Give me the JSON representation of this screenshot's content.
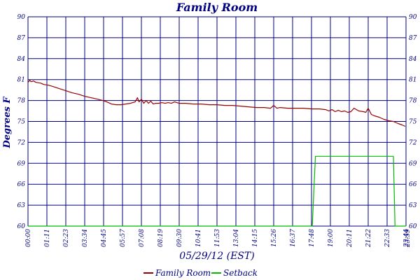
{
  "chart_data": {
    "type": "line",
    "title": "Family Room",
    "xlabel": "05/29/12 (EST)",
    "ylabel": "Degrees F",
    "grid": true,
    "legend_position": "bottom",
    "x_tick_labels": [
      "00:00",
      "01:11",
      "02:23",
      "03:34",
      "04:45",
      "05:57",
      "07:08",
      "08:19",
      "09:30",
      "10:41",
      "11:53",
      "13:04",
      "14:15",
      "15:26",
      "16:37",
      "17:48",
      "19:00",
      "20:11",
      "21:22",
      "22:33",
      "23:44",
      "23:59"
    ],
    "y_ticks": [
      60,
      63,
      66,
      69,
      72,
      75,
      78,
      81,
      84,
      87,
      90
    ],
    "ylim": [
      60,
      90
    ],
    "xlim_hours": [
      0,
      24
    ],
    "colors": {
      "family_room": "#990000",
      "setback": "#00bb00",
      "grid": "#000080",
      "text": "#000080"
    },
    "series": [
      {
        "name": "Family Room",
        "color": "#990000",
        "x_hours": [
          0,
          0.1,
          0.2,
          0.35,
          0.5,
          0.8,
          1.0,
          1.3,
          1.6,
          2.0,
          2.4,
          2.8,
          3.2,
          3.6,
          4.0,
          4.4,
          4.75,
          5.0,
          5.3,
          5.6,
          5.9,
          6.2,
          6.5,
          6.8,
          6.95,
          7.05,
          7.2,
          7.35,
          7.5,
          7.65,
          7.8,
          7.95,
          8.1,
          8.3,
          8.5,
          8.7,
          8.9,
          9.1,
          9.3,
          9.6,
          10.0,
          10.5,
          11.0,
          11.5,
          12.0,
          12.5,
          13.0,
          13.5,
          14.0,
          14.5,
          15.0,
          15.4,
          15.6,
          15.8,
          16.0,
          16.5,
          17.0,
          17.5,
          18.0,
          18.5,
          18.9,
          19.1,
          19.3,
          19.5,
          19.7,
          19.9,
          20.1,
          20.3,
          20.5,
          20.7,
          21.0,
          21.3,
          21.45,
          21.6,
          21.8,
          22.0,
          22.3,
          22.6,
          22.9,
          23.2,
          23.5,
          23.75,
          23.95
        ],
        "values": [
          80.6,
          80.9,
          80.7,
          80.8,
          80.6,
          80.5,
          80.3,
          80.2,
          80.0,
          79.7,
          79.4,
          79.1,
          78.9,
          78.6,
          78.4,
          78.2,
          78.0,
          77.8,
          77.5,
          77.4,
          77.4,
          77.5,
          77.6,
          77.8,
          78.4,
          77.8,
          78.2,
          77.6,
          78.0,
          77.6,
          77.9,
          77.5,
          77.6,
          77.6,
          77.7,
          77.6,
          77.7,
          77.6,
          77.8,
          77.6,
          77.6,
          77.5,
          77.5,
          77.4,
          77.4,
          77.3,
          77.3,
          77.2,
          77.1,
          77.0,
          77.0,
          76.9,
          77.3,
          76.9,
          77.0,
          76.9,
          76.9,
          76.9,
          76.8,
          76.8,
          76.7,
          76.5,
          76.7,
          76.4,
          76.6,
          76.4,
          76.5,
          76.3,
          76.4,
          76.9,
          76.5,
          76.4,
          76.3,
          76.9,
          76.0,
          75.8,
          75.6,
          75.3,
          75.1,
          75.0,
          74.7,
          74.5,
          74.3
        ]
      },
      {
        "name": "Setback",
        "color": "#00bb00",
        "x_hours": [
          0,
          18.05,
          18.25,
          23.2,
          23.3,
          24
        ],
        "values": [
          60,
          60,
          70,
          70,
          60,
          60
        ]
      }
    ]
  }
}
